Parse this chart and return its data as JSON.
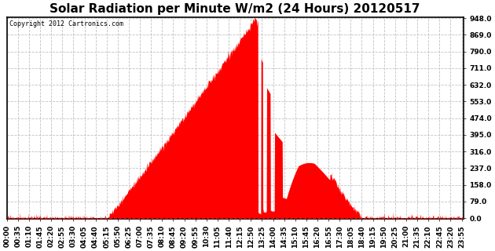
{
  "title": "Solar Radiation per Minute W/m2 (24 Hours) 20120517",
  "copyright": "Copyright 2012 Cartronics.com",
  "fill_color": "#FF0000",
  "line_color": "#FF0000",
  "dashed_line_color": "#FF0000",
  "background_color": "#FFFFFF",
  "plot_bg_color": "#FFFFFF",
  "yticks": [
    0.0,
    79.0,
    158.0,
    237.0,
    316.0,
    395.0,
    474.0,
    553.0,
    632.0,
    711.0,
    790.0,
    869.0,
    948.0
  ],
  "ymax": 948.0,
  "ymin": 0.0,
  "title_fontsize": 11,
  "tick_fontsize": 6.5,
  "grid_color": "#BBBBBB",
  "num_minutes": 1440,
  "xtick_step": 35,
  "sunrise_min": 315,
  "sunset_min": 1128,
  "peak_min": 785,
  "peak_val": 948
}
